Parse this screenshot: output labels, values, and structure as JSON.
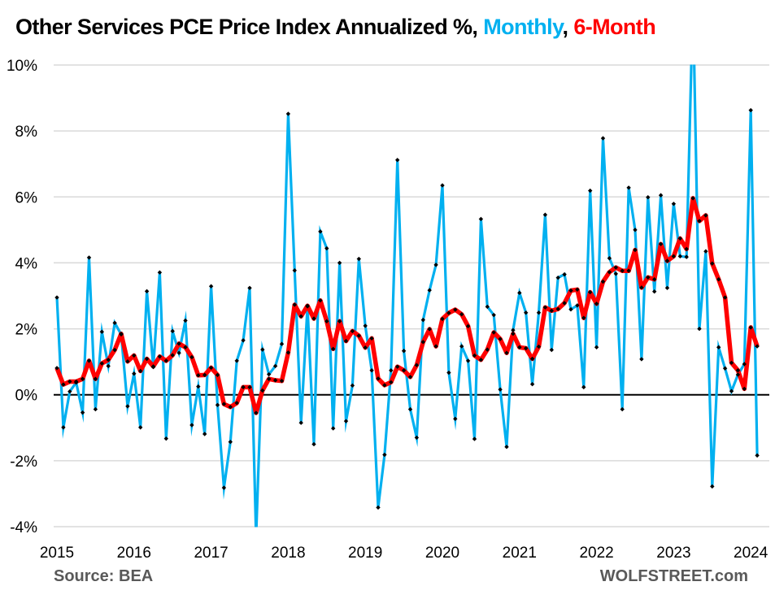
{
  "title": {
    "main": "Other Services PCE Price Index Annualized %, ",
    "monthly": "Monthly",
    "sep": ", ",
    "sixmonth": "6-Month"
  },
  "footer": {
    "source": "Source: BEA",
    "brand": "WOLFSTREET.com"
  },
  "chart_data": {
    "type": "line",
    "title": "Other Services PCE Price Index Annualized %, Monthly, 6-Month",
    "xlabel": "",
    "ylabel": "",
    "ylim": [
      -4,
      10
    ],
    "yticks": [
      -4,
      -2,
      0,
      2,
      4,
      6,
      8,
      10
    ],
    "ytick_labels": [
      "-4%",
      "-2%",
      "0%",
      "2%",
      "4%",
      "6%",
      "8%",
      "10%"
    ],
    "xtick_labels": [
      "2015",
      "2016",
      "2017",
      "2018",
      "2019",
      "2020",
      "2021",
      "2022",
      "2023",
      "2024"
    ],
    "x_start": "2015-01",
    "x_end": "2024-02",
    "frequency": "monthly",
    "grid": true,
    "legend": "in-title",
    "colors": {
      "monthly": "#00B0F0",
      "sixmonth": "#FF0000",
      "markers": "#000000",
      "zero_line": "#000000",
      "grid": "#D9D9D9"
    },
    "series": [
      {
        "name": "Monthly",
        "values": [
          2.95,
          -0.99,
          0.1,
          0.37,
          -0.54,
          4.16,
          -0.44,
          1.91,
          0.87,
          2.18,
          1.83,
          -0.35,
          0.64,
          -0.99,
          3.14,
          0.84,
          3.71,
          -1.33,
          1.93,
          1.27,
          2.25,
          -0.92,
          0.25,
          -1.19,
          3.29,
          -0.31,
          -2.82,
          -1.43,
          1.03,
          1.65,
          3.24,
          -4.3,
          1.37,
          0.62,
          0.87,
          1.54,
          8.52,
          3.77,
          -0.85,
          2.68,
          -1.5,
          4.95,
          4.44,
          -1.02,
          4.0,
          -0.8,
          0.28,
          4.12,
          2.09,
          0.74,
          -3.42,
          -1.82,
          0.74,
          7.12,
          1.33,
          -0.44,
          -1.3,
          2.27,
          3.17,
          3.94,
          6.35,
          0.67,
          -0.73,
          1.47,
          1.03,
          -1.34,
          5.33,
          2.67,
          2.42,
          0.16,
          -1.58,
          1.96,
          3.09,
          2.49,
          0.32,
          2.49,
          5.46,
          1.36,
          3.55,
          3.65,
          2.59,
          2.71,
          0.23,
          6.19,
          1.44,
          7.78,
          4.14,
          3.67,
          -0.44,
          6.28,
          5.0,
          1.08,
          5.99,
          3.13,
          6.05,
          3.24,
          5.79,
          4.2,
          4.18,
          12.0,
          2.0,
          4.35,
          -2.78,
          1.44,
          0.8,
          0.11,
          0.61,
          0.93,
          8.63,
          -1.84
        ]
      },
      {
        "name": "6-Month",
        "values": [
          0.81,
          0.31,
          0.4,
          0.4,
          0.48,
          1.03,
          0.48,
          0.95,
          1.06,
          1.36,
          1.85,
          1.01,
          1.19,
          0.72,
          1.09,
          0.86,
          1.16,
          1.03,
          1.2,
          1.55,
          1.44,
          1.14,
          0.59,
          0.6,
          0.82,
          0.6,
          -0.28,
          -0.37,
          -0.25,
          0.23,
          0.23,
          -0.55,
          0.13,
          0.48,
          0.44,
          0.42,
          1.28,
          2.73,
          2.38,
          2.7,
          2.31,
          2.86,
          2.23,
          1.39,
          2.23,
          1.63,
          1.93,
          1.79,
          1.43,
          1.71,
          0.49,
          0.29,
          0.38,
          0.85,
          0.74,
          0.54,
          0.9,
          1.6,
          1.99,
          1.47,
          2.3,
          2.48,
          2.58,
          2.44,
          2.08,
          1.19,
          1.06,
          1.37,
          1.89,
          1.69,
          1.27,
          1.85,
          1.44,
          1.41,
          1.09,
          1.46,
          2.65,
          2.55,
          2.6,
          2.78,
          3.16,
          3.19,
          2.33,
          3.11,
          2.76,
          3.43,
          3.72,
          3.86,
          3.76,
          3.76,
          4.39,
          3.25,
          3.56,
          3.5,
          4.57,
          4.06,
          4.2,
          4.74,
          4.42,
          5.96,
          5.27,
          5.44,
          3.98,
          3.5,
          2.95,
          0.97,
          0.74,
          0.18,
          2.04,
          1.47
        ]
      }
    ]
  }
}
